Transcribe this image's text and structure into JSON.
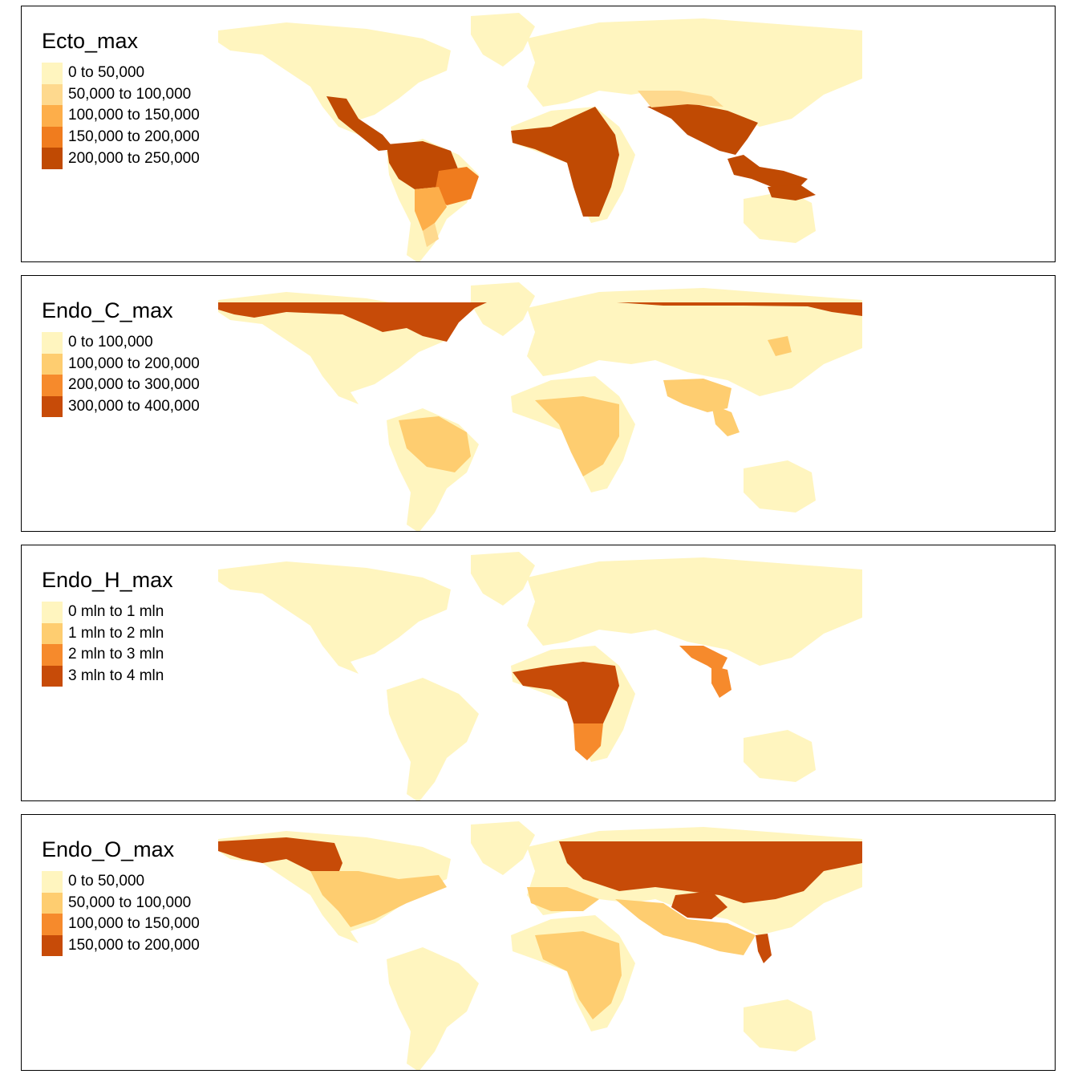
{
  "base_color": "#fff5bf",
  "panels": [
    {
      "title": "Ecto_max",
      "legend": [
        {
          "label": "0 to 50,000",
          "color": "#fff5bf"
        },
        {
          "label": "50,000 to 100,000",
          "color": "#fed98e"
        },
        {
          "label": "100,000 to 150,000",
          "color": "#fdae4a"
        },
        {
          "label": "150,000 to 200,000",
          "color": "#f07c1e"
        },
        {
          "label": "200,000 to 250,000",
          "color": "#c04a03"
        }
      ]
    },
    {
      "title": "Endo_C_max",
      "legend": [
        {
          "label": "0 to 100,000",
          "color": "#fff5bf"
        },
        {
          "label": "100,000 to 200,000",
          "color": "#fecd70"
        },
        {
          "label": "200,000 to 300,000",
          "color": "#f68a2c"
        },
        {
          "label": "300,000 to 400,000",
          "color": "#c74b08"
        }
      ]
    },
    {
      "title": "Endo_H_max",
      "legend": [
        {
          "label": "0 mln to 1 mln",
          "color": "#fff5bf"
        },
        {
          "label": "1 mln to 2 mln",
          "color": "#fecd70"
        },
        {
          "label": "2 mln to 3 mln",
          "color": "#f68a2c"
        },
        {
          "label": "3 mln to 4 mln",
          "color": "#c74b08"
        }
      ]
    },
    {
      "title": "Endo_O_max",
      "legend": [
        {
          "label": "0 to 50,000",
          "color": "#fff5bf"
        },
        {
          "label": "50,000 to 100,000",
          "color": "#fecd70"
        },
        {
          "label": "100,000 to 150,000",
          "color": "#f68a2c"
        },
        {
          "label": "150,000 to 200,000",
          "color": "#c74b08"
        }
      ]
    }
  ]
}
